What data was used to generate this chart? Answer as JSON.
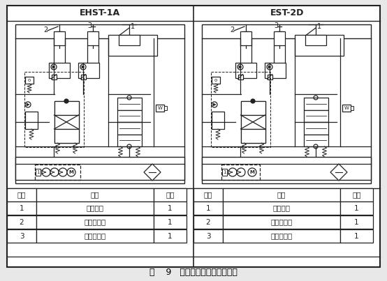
{
  "title_caption": "图    9   餧斗控制回路组成示意图",
  "left_label": "EHST-1A",
  "right_label": "EST-2D",
  "table_headers": [
    "序号",
    "名称",
    "数量"
  ],
  "table_rows": [
    [
      "1",
      "主控制阀",
      "1"
    ],
    [
      "2",
      "倾翻液压缸",
      "1"
    ],
    [
      "3",
      "举升液压缸",
      "1"
    ]
  ],
  "bg_color": "#e8e8e8",
  "border_color": "#222222",
  "text_color": "#000000",
  "diagram_bg": "#ffffff",
  "figsize": [
    5.54,
    4.03
  ],
  "dpi": 100
}
